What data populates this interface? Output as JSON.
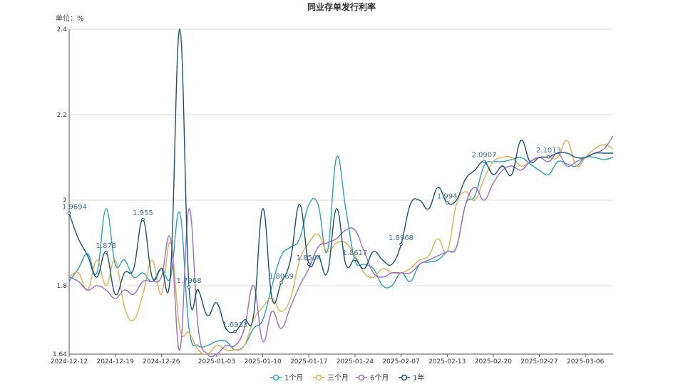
{
  "chart_data": {
    "type": "line",
    "title": "同业存单发行利率",
    "unit_label": "单位：%",
    "ylim": [
      1.64,
      2.4
    ],
    "y_ticks": [
      "1.64",
      "1.8",
      "2",
      "2.2",
      "2.4"
    ],
    "x_ticks": [
      "2024-12-12",
      "2024-12-19",
      "2024-12-26",
      "2025-01-03",
      "2025-01-10",
      "2025-01-17",
      "2025-01-24",
      "2025-02-07",
      "2025-02-13",
      "2025-02-20",
      "2025-02-27",
      "2025-03-06"
    ],
    "grid": "horizontal",
    "legend_position": "bottom",
    "categories": [
      "2024-12-12",
      "2024-12-13",
      "2024-12-16",
      "2024-12-17",
      "2024-12-18",
      "2024-12-19",
      "2024-12-20",
      "2024-12-23",
      "2024-12-24",
      "2024-12-25",
      "2024-12-26",
      "2024-12-27",
      "2024-12-28",
      "2024-12-30",
      "2024-12-31",
      "2025-01-02",
      "2025-01-03",
      "2025-01-06",
      "2025-01-07",
      "2025-01-08",
      "2025-01-09",
      "2025-01-10",
      "2025-01-13",
      "2025-01-14",
      "2025-01-15",
      "2025-01-16",
      "2025-01-17",
      "2025-01-20",
      "2025-01-21",
      "2025-01-22",
      "2025-01-23",
      "2025-01-24",
      "2025-01-26",
      "2025-01-27",
      "2025-02-05",
      "2025-02-06",
      "2025-02-07",
      "2025-02-08",
      "2025-02-10",
      "2025-02-11",
      "2025-02-12",
      "2025-02-13",
      "2025-02-14",
      "2025-02-17",
      "2025-02-18",
      "2025-02-19",
      "2025-02-20",
      "2025-02-21",
      "2025-02-24",
      "2025-02-25",
      "2025-02-26",
      "2025-02-27",
      "2025-02-28",
      "2025-03-03",
      "2025-03-04",
      "2025-03-05",
      "2025-03-06",
      "2025-03-07",
      "2025-03-10",
      "2025-03-11"
    ],
    "series": [
      {
        "name": "1个月",
        "color": "#2a9fbf",
        "values": [
          1.81,
          1.84,
          1.875,
          1.83,
          1.98,
          1.85,
          1.86,
          1.82,
          1.83,
          1.81,
          1.84,
          1.82,
          1.97,
          1.7,
          1.66,
          1.66,
          1.67,
          1.67,
          1.65,
          1.66,
          1.7,
          1.72,
          1.8,
          1.87,
          1.89,
          1.91,
          1.99,
          1.99,
          1.88,
          2.1,
          1.98,
          1.86,
          1.85,
          1.84,
          1.8,
          1.8,
          1.83,
          1.81,
          1.85,
          1.855,
          1.86,
          1.88,
          1.89,
          1.99,
          2.01,
          2.08,
          2.09,
          2.09,
          2.095,
          2.1,
          2.085,
          2.07,
          2.06,
          2.09,
          2.085,
          2.08,
          2.1,
          2.1,
          2.095,
          2.1
        ]
      },
      {
        "name": "三个月",
        "color": "#e0b050",
        "values": [
          1.82,
          1.83,
          1.79,
          1.86,
          1.8,
          1.86,
          1.75,
          1.72,
          1.78,
          1.86,
          1.78,
          1.9,
          1.7,
          1.69,
          1.65,
          1.64,
          1.66,
          1.65,
          1.65,
          1.66,
          1.72,
          1.75,
          1.77,
          1.74,
          1.77,
          1.86,
          1.9,
          1.92,
          1.88,
          1.9,
          1.9,
          1.87,
          1.83,
          1.82,
          1.84,
          1.83,
          1.83,
          1.84,
          1.86,
          1.87,
          1.91,
          1.88,
          1.99,
          2.02,
          2.0,
          2.05,
          2.09,
          2.1,
          2.1,
          2.08,
          2.09,
          2.1,
          2.1,
          2.1,
          2.14,
          2.08,
          2.1,
          2.12,
          2.13,
          2.12
        ]
      },
      {
        "name": "6个月",
        "color": "#9a6ccf",
        "values": [
          1.82,
          1.81,
          1.79,
          1.8,
          1.79,
          1.77,
          1.79,
          1.78,
          1.81,
          1.81,
          1.82,
          1.91,
          1.65,
          1.98,
          1.7,
          1.64,
          1.64,
          1.66,
          1.66,
          1.7,
          1.8,
          1.67,
          1.74,
          1.7,
          1.75,
          1.8,
          1.84,
          1.89,
          1.9,
          1.91,
          1.93,
          1.93,
          1.88,
          1.83,
          1.82,
          1.83,
          1.83,
          1.83,
          1.85,
          1.86,
          1.87,
          1.88,
          1.89,
          1.99,
          2.03,
          2.0,
          2.04,
          2.07,
          2.08,
          2.07,
          2.09,
          2.1,
          2.09,
          2.11,
          2.08,
          2.09,
          2.1,
          2.11,
          2.12,
          2.15
        ]
      },
      {
        "name": "1年",
        "color": "#1a4f7a",
        "values": [
          1.9694,
          1.91,
          1.87,
          1.82,
          1.878,
          1.78,
          1.83,
          1.84,
          1.955,
          1.82,
          1.84,
          1.83,
          2.4,
          1.7968,
          1.79,
          1.73,
          1.76,
          1.7,
          1.6933,
          1.72,
          1.73,
          1.98,
          1.77,
          1.8069,
          1.86,
          1.99,
          1.8504,
          1.87,
          1.83,
          1.98,
          1.85,
          1.8617,
          1.84,
          1.88,
          1.86,
          1.85,
          1.8968,
          1.99,
          2.0,
          1.98,
          2.03,
          1.994,
          2.0,
          2.05,
          2.07,
          2.0907,
          2.06,
          2.08,
          2.06,
          2.14,
          2.09,
          2.1,
          2.1013,
          2.11,
          2.11,
          2.1,
          2.1,
          2.11,
          2.11,
          2.11
        ]
      }
    ],
    "data_labels": [
      {
        "series": 3,
        "index": 0,
        "text": "1.9694"
      },
      {
        "series": 3,
        "index": 4,
        "text": "1.878"
      },
      {
        "series": 3,
        "index": 8,
        "text": "1.955"
      },
      {
        "series": 3,
        "index": 13,
        "text": "1.7968"
      },
      {
        "series": 3,
        "index": 18,
        "text": "1.6933"
      },
      {
        "series": 3,
        "index": 23,
        "text": "1.8069"
      },
      {
        "series": 3,
        "index": 26,
        "text": "1.8504"
      },
      {
        "series": 3,
        "index": 31,
        "text": "1.8617"
      },
      {
        "series": 3,
        "index": 36,
        "text": "1.8968"
      },
      {
        "series": 3,
        "index": 41,
        "text": "1.994"
      },
      {
        "series": 3,
        "index": 45,
        "text": "2.0907"
      },
      {
        "series": 3,
        "index": 52,
        "text": "2.1013"
      }
    ]
  }
}
